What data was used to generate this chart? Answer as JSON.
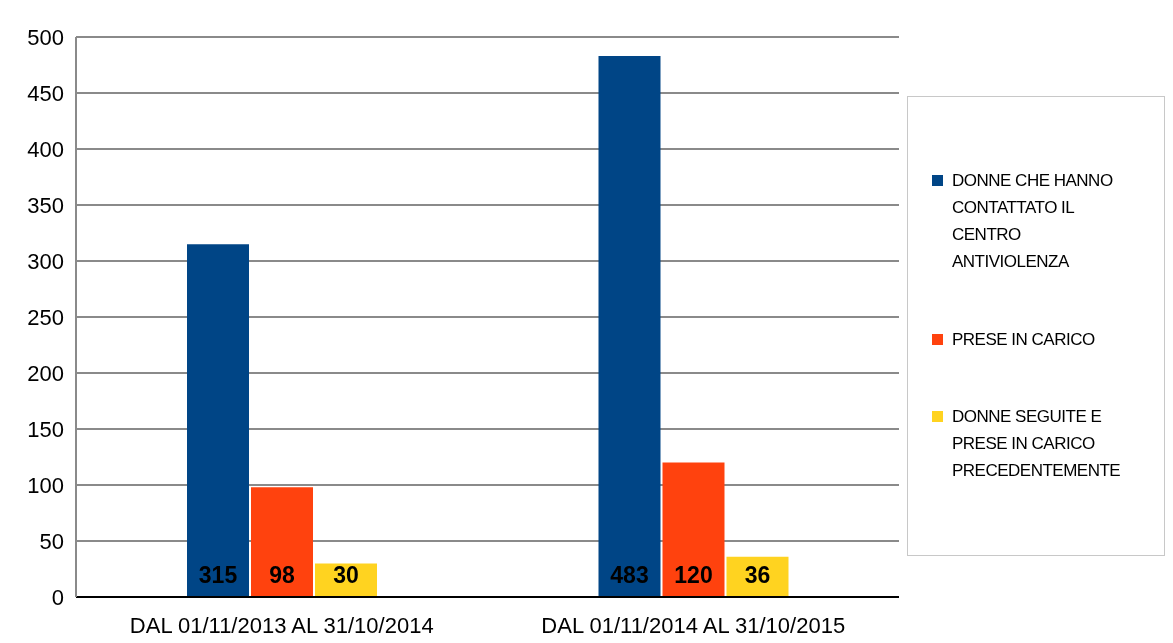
{
  "chart_data": {
    "type": "bar",
    "categories": [
      "DAL 01/11/2013 AL 31/10/2014",
      "DAL 01/11/2014 AL 31/10/2015"
    ],
    "series": [
      {
        "name": "DONNE CHE HANNO CONTATTATO IL CENTRO ANTIVIOLENZA",
        "color": "#004586",
        "values": [
          315,
          483
        ]
      },
      {
        "name": "PRESE IN CARICO",
        "color": "#ff420e",
        "values": [
          98,
          120
        ]
      },
      {
        "name": "DONNE SEGUITE E PRESE IN CARICO PRECEDENTEMENTE",
        "color": "#ffd320",
        "values": [
          30,
          36
        ]
      }
    ],
    "ylim": [
      0,
      500
    ],
    "yticks": [
      0,
      50,
      100,
      150,
      200,
      250,
      300,
      350,
      400,
      450,
      500
    ],
    "grid": "y",
    "legend": "right",
    "data_labels": true
  }
}
